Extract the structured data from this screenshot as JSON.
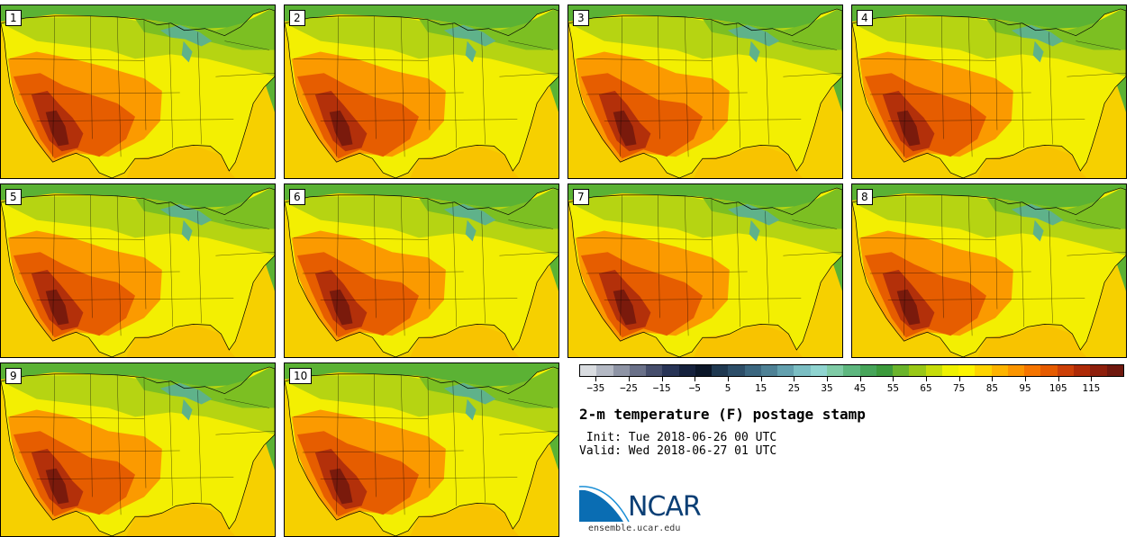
{
  "panels": [
    {
      "label": "1"
    },
    {
      "label": "2"
    },
    {
      "label": "3"
    },
    {
      "label": "4"
    },
    {
      "label": "5"
    },
    {
      "label": "6"
    },
    {
      "label": "7"
    },
    {
      "label": "8"
    },
    {
      "label": "9"
    },
    {
      "label": "10"
    }
  ],
  "colorbar": {
    "colors": [
      "#d9dce0",
      "#b4b9c4",
      "#8e94a5",
      "#6a7189",
      "#464e6c",
      "#283456",
      "#15213d",
      "#0b1628",
      "#1f3850",
      "#2d4e68",
      "#3c6780",
      "#4e8195",
      "#63a0ae",
      "#7bbec3",
      "#8fd4d0",
      "#7fcba6",
      "#5eb77f",
      "#47a55a",
      "#3c9a3c",
      "#6ab42c",
      "#99c817",
      "#c6dc0a",
      "#eef101",
      "#fcf400",
      "#fed400",
      "#fdb400",
      "#fb9500",
      "#f57500",
      "#e55b00",
      "#cc4008",
      "#ae2b08",
      "#8e1f0c",
      "#6f180e"
    ],
    "tick_labels": [
      "-35",
      "-25",
      "-15",
      "-5",
      "5",
      "15",
      "25",
      "35",
      "45",
      "55",
      "65",
      "75",
      "85",
      "95",
      "105",
      "115"
    ]
  },
  "title": "2-m temperature (F) postage stamp",
  "init_text": " Init: Tue 2018-06-26 00 UTC",
  "valid_text": "Valid: Wed 2018-06-27 01 UTC",
  "logo_text": "NCAR",
  "site": "ensemble.ucar.edu"
}
